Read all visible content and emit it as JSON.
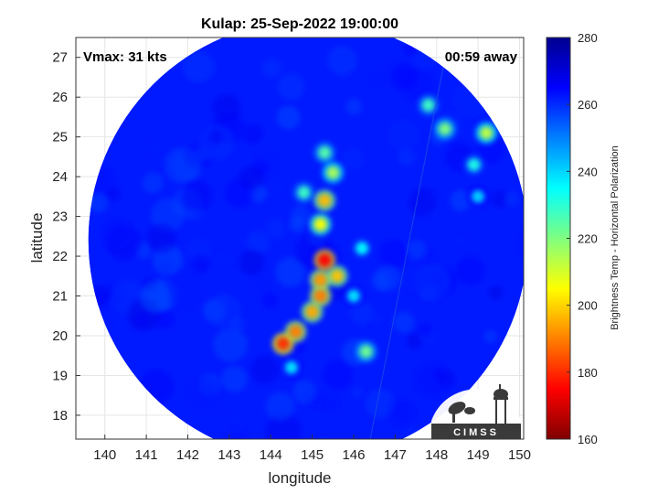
{
  "chart_data": {
    "type": "heatmap",
    "title": "Kulap: 25-Sep-2022 19:00:00",
    "xlabel": "longitude",
    "ylabel": "latitude",
    "xlim": [
      139.3,
      150.1
    ],
    "ylim": [
      17.4,
      27.5
    ],
    "xticks": [
      140,
      141,
      142,
      143,
      144,
      145,
      146,
      147,
      148,
      149,
      150
    ],
    "yticks": [
      18,
      19,
      20,
      21,
      22,
      23,
      24,
      25,
      26,
      27
    ],
    "grid": true,
    "annotation_left": "Vmax: 31 kts",
    "annotation_right": "00:59 away",
    "colorbar": {
      "label": "Brightness Temp - Horizontal Polarization",
      "min": 160,
      "max": 280,
      "ticks": [
        160,
        180,
        200,
        220,
        240,
        260,
        280
      ],
      "colors": [
        "#7f0000",
        "#ff0000",
        "#ff8000",
        "#ffff00",
        "#80ff80",
        "#00ffff",
        "#0080ff",
        "#0000ff",
        "#00008f"
      ]
    },
    "background_value": 262,
    "swath_circle": {
      "center": [
        144.9,
        22.4
      ],
      "radius_deg": 5.3
    },
    "cold_features": [
      {
        "lon": 144.3,
        "lat": 19.8,
        "value": 180
      },
      {
        "lon": 144.6,
        "lat": 20.1,
        "value": 190
      },
      {
        "lon": 145.0,
        "lat": 20.6,
        "value": 195
      },
      {
        "lon": 145.2,
        "lat": 21.0,
        "value": 190
      },
      {
        "lon": 145.2,
        "lat": 21.4,
        "value": 193
      },
      {
        "lon": 145.3,
        "lat": 21.9,
        "value": 175
      },
      {
        "lon": 145.6,
        "lat": 21.5,
        "value": 198
      },
      {
        "lon": 145.3,
        "lat": 23.4,
        "value": 197
      },
      {
        "lon": 145.2,
        "lat": 22.8,
        "value": 205
      },
      {
        "lon": 145.5,
        "lat": 24.1,
        "value": 215
      },
      {
        "lon": 145.3,
        "lat": 24.6,
        "value": 225
      },
      {
        "lon": 144.8,
        "lat": 23.6,
        "value": 228
      },
      {
        "lon": 144.5,
        "lat": 19.2,
        "value": 238
      },
      {
        "lon": 146.3,
        "lat": 19.6,
        "value": 222
      },
      {
        "lon": 146.2,
        "lat": 22.2,
        "value": 235
      },
      {
        "lon": 146.0,
        "lat": 21.0,
        "value": 238
      },
      {
        "lon": 148.2,
        "lat": 25.2,
        "value": 220
      },
      {
        "lon": 148.9,
        "lat": 24.3,
        "value": 232
      },
      {
        "lon": 147.8,
        "lat": 25.8,
        "value": 228
      },
      {
        "lon": 149.2,
        "lat": 25.1,
        "value": 212
      },
      {
        "lon": 149.0,
        "lat": 23.5,
        "value": 240
      }
    ]
  },
  "logo": {
    "text": "CIMSS"
  }
}
